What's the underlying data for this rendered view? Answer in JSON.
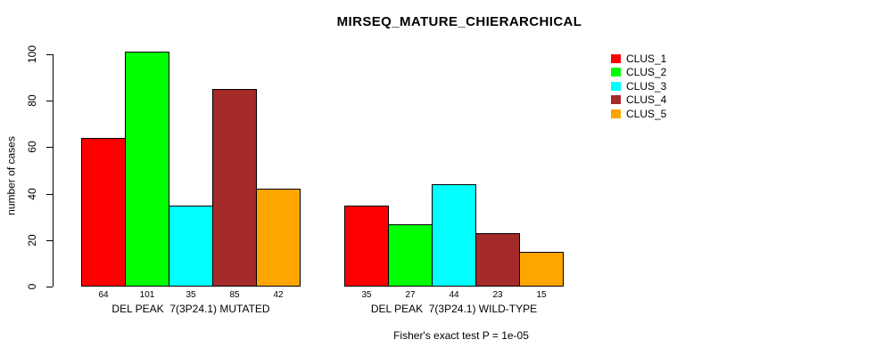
{
  "chart_data": {
    "type": "bar",
    "title": "MIRSEQ_MATURE_CHIERARCHICAL",
    "ylabel": "number of cases",
    "xlabel": "",
    "ylim": [
      0,
      100
    ],
    "yticks": [
      0,
      20,
      40,
      60,
      80,
      100
    ],
    "grid": false,
    "legend_position": "right",
    "categories": [
      "DEL PEAK  7(3P24.1) MUTATED",
      "DEL PEAK  7(3P24.1) WILD-TYPE"
    ],
    "series": [
      {
        "name": "CLUS_1",
        "color": "#ff0000",
        "values": [
          64,
          35
        ]
      },
      {
        "name": "CLUS_2",
        "color": "#00ff00",
        "values": [
          101,
          27
        ]
      },
      {
        "name": "CLUS_3",
        "color": "#00ffff",
        "values": [
          35,
          44
        ]
      },
      {
        "name": "CLUS_4",
        "color": "#a52a2a",
        "values": [
          85,
          23
        ]
      },
      {
        "name": "CLUS_5",
        "color": "#ffa500",
        "values": [
          42,
          15
        ]
      }
    ],
    "bar_value_labels": {
      "group_1": [
        64,
        101,
        35,
        85,
        42
      ],
      "group_2": [
        35,
        27,
        44,
        23,
        15
      ]
    },
    "annotation": "Fisher's exact test P = 1e-05",
    "text_color": "#000000",
    "background_color": "#ffffff"
  }
}
